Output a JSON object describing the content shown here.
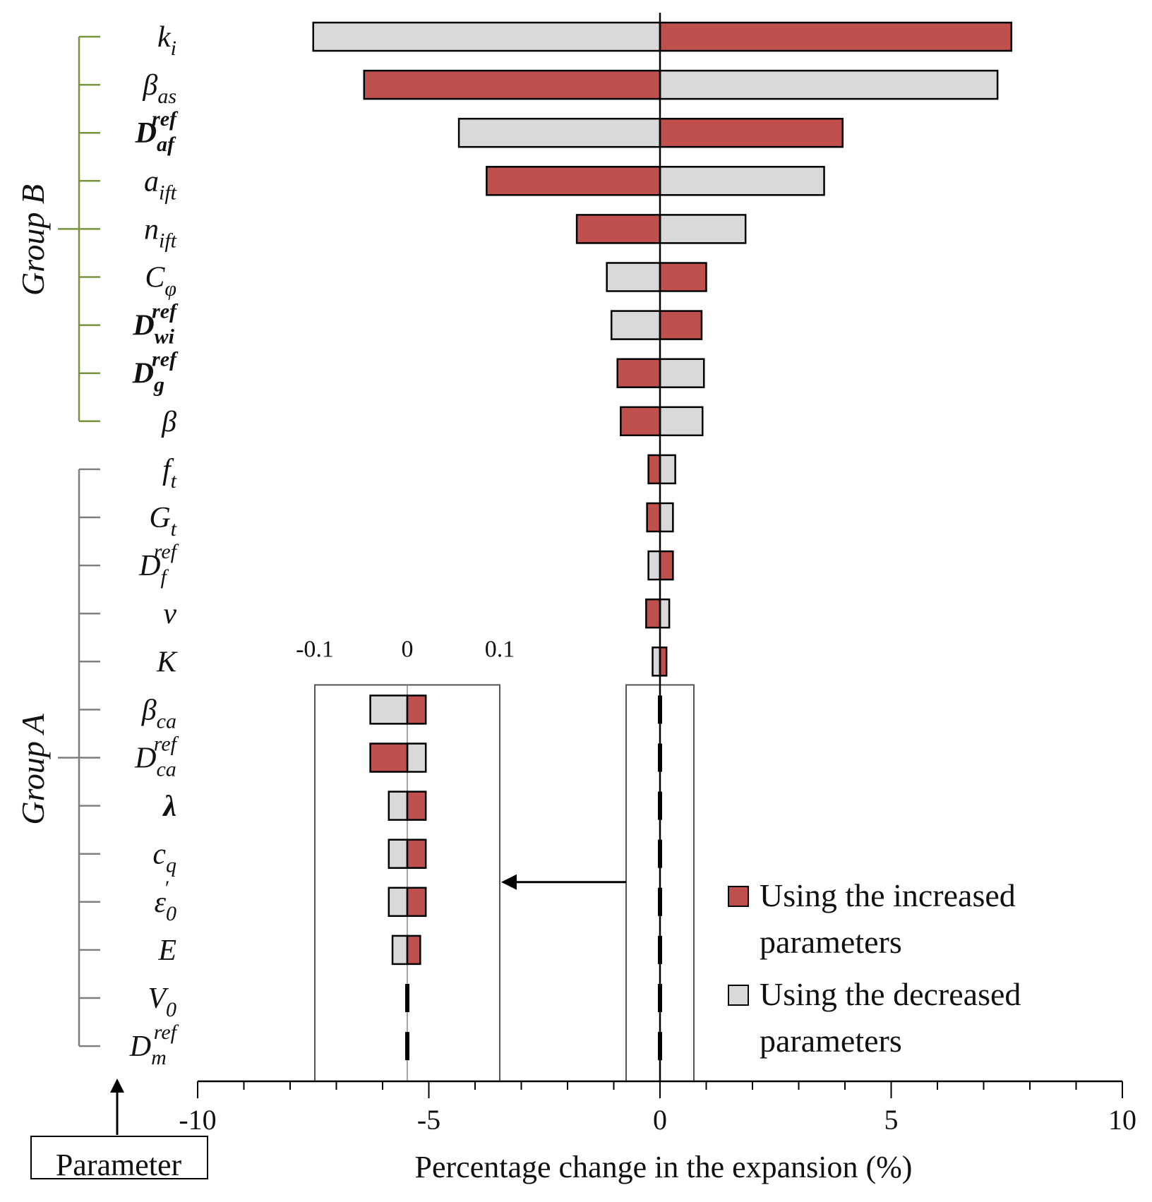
{
  "chart_data": {
    "type": "bar",
    "orientation": "horizontal",
    "xlabel": "Percentage  change in the  expansion (%)",
    "ylabel": "Parameter",
    "xlim": [
      -10,
      10
    ],
    "xticks": [
      "-10",
      "-5",
      "0",
      "5",
      "10"
    ],
    "series": [
      {
        "name": "Using the increased parameters",
        "color": "#c0504d"
      },
      {
        "name": "Using the decreased parameters",
        "color": "#d9d9d9"
      }
    ],
    "groups": [
      {
        "name": "Group B"
      },
      {
        "name": "Group A"
      }
    ],
    "parameters": [
      {
        "label": {
          "base": "k",
          "sub": "i",
          "sup": ""
        },
        "group": "B",
        "increased": 7.6,
        "decreased": -7.5
      },
      {
        "label": {
          "base": "β",
          "sub": "as",
          "sup": ""
        },
        "group": "B",
        "increased": -6.4,
        "decreased": 7.3
      },
      {
        "label": {
          "base": "D",
          "sub": "af",
          "sup": "ref",
          "bold": true
        },
        "group": "B",
        "increased": 3.95,
        "decreased": -4.35
      },
      {
        "label": {
          "base": "a",
          "sub": "ift",
          "sup": ""
        },
        "group": "B",
        "increased": -3.75,
        "decreased": 3.55
      },
      {
        "label": {
          "base": "n",
          "sub": "ift",
          "sup": ""
        },
        "group": "B",
        "increased": -1.8,
        "decreased": 1.85
      },
      {
        "label": {
          "base": "C",
          "sub": "φ",
          "sup": ""
        },
        "group": "B",
        "increased": 1.0,
        "decreased": -1.15
      },
      {
        "label": {
          "base": "D",
          "sub": "wi",
          "sup": "ref",
          "bold": true
        },
        "group": "B",
        "increased": 0.9,
        "decreased": -1.05
      },
      {
        "label": {
          "base": "D",
          "sub": "g",
          "sup": "ref",
          "bold": true
        },
        "group": "B",
        "increased": -0.92,
        "decreased": 0.95
      },
      {
        "label": {
          "base": "β",
          "sub": "",
          "sup": ""
        },
        "group": "B",
        "increased": -0.85,
        "decreased": 0.92
      },
      {
        "label": {
          "base": "f",
          "sub": "t",
          "sup": ""
        },
        "group": "A",
        "increased": -0.25,
        "decreased": 0.33
      },
      {
        "label": {
          "base": "G",
          "sub": "t",
          "sup": ""
        },
        "group": "A",
        "increased": -0.28,
        "decreased": 0.28
      },
      {
        "label": {
          "base": "D",
          "sub": "f",
          "sup": "ref"
        },
        "group": "A",
        "increased": 0.28,
        "decreased": -0.25
      },
      {
        "label": {
          "base": "ν",
          "sub": "",
          "sup": ""
        },
        "group": "A",
        "increased": -0.3,
        "decreased": 0.2
      },
      {
        "label": {
          "base": "K",
          "sub": "",
          "sup": ""
        },
        "group": "A",
        "increased": 0.14,
        "decreased": -0.16
      },
      {
        "label": {
          "base": "β",
          "sub": "ca",
          "sup": ""
        },
        "group": "A",
        "increased": 0.02,
        "decreased": -0.04
      },
      {
        "label": {
          "base": "D",
          "sub": "ca",
          "sup": "ref"
        },
        "group": "A",
        "increased": -0.04,
        "decreased": 0.02
      },
      {
        "label": {
          "base": "λ",
          "sub": "",
          "sup": "",
          "bold": true
        },
        "group": "A",
        "increased": 0.02,
        "decreased": -0.02
      },
      {
        "label": {
          "base": "c",
          "sub": "q",
          "sup": ""
        },
        "group": "A",
        "increased": 0.02,
        "decreased": -0.02
      },
      {
        "label": {
          "base": "ε",
          "sub": "0",
          "sup": "′"
        },
        "group": "A",
        "increased": 0.02,
        "decreased": -0.02
      },
      {
        "label": {
          "base": "E",
          "sub": "",
          "sup": ""
        },
        "group": "A",
        "increased": 0.014,
        "decreased": -0.016
      },
      {
        "label": {
          "base": "V",
          "sub": "0",
          "sup": ""
        },
        "group": "A",
        "increased": 0.001,
        "decreased": -0.001
      },
      {
        "label": {
          "base": "D",
          "sub": "m",
          "sup": "ref"
        },
        "group": "A",
        "increased": 0.001,
        "decreased": -0.001
      }
    ],
    "inset": {
      "xlim": [
        -0.1,
        0.1
      ],
      "xticks": [
        "-0.1",
        "0",
        "0.1"
      ],
      "first_parameter_index": 14
    }
  }
}
